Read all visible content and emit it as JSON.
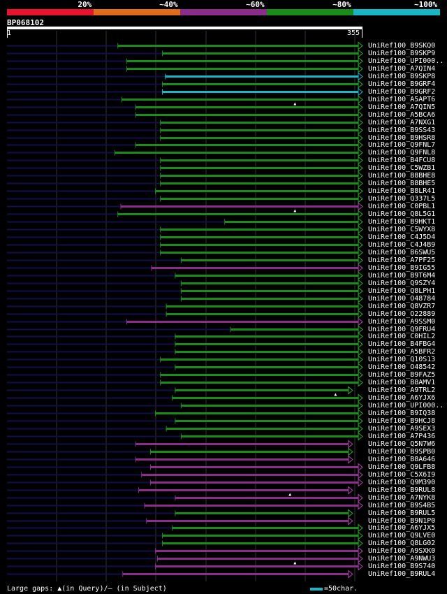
{
  "legend": {
    "segments": [
      {
        "label": "20%",
        "color": "#e8132e"
      },
      {
        "label": "~40%",
        "color": "#e06d1a"
      },
      {
        "label": "~60%",
        "color": "#8b2d8b"
      },
      {
        "label": "~80%",
        "color": "#1a8c1a"
      },
      {
        "label": "~100%",
        "color": "#19b6c6"
      }
    ]
  },
  "query": {
    "id": "BP068102",
    "start": "1",
    "end": "355",
    "length": 355
  },
  "colors": {
    "background": "#000000",
    "unaligned": "#10104a",
    "grid": "#333333"
  },
  "hits": [
    {
      "name": "UniRef100_B9SKQ0",
      "start": 112,
      "end": 355,
      "color": "green"
    },
    {
      "name": "UniRef100_B9SKP9",
      "start": 157,
      "end": 355,
      "color": "green"
    },
    {
      "name": "UniRef100_UPI000..",
      "start": 121,
      "end": 355,
      "color": "green"
    },
    {
      "name": "UniRef100_A7QIN4",
      "start": 121,
      "end": 355,
      "color": "green"
    },
    {
      "name": "UniRef100_B9SKP8",
      "start": 160,
      "end": 355,
      "color": "cyan"
    },
    {
      "name": "UniRef100_B9GRF4",
      "start": 157,
      "end": 355,
      "color": "green"
    },
    {
      "name": "UniRef100_B9GRF2",
      "start": 157,
      "end": 355,
      "color": "cyan"
    },
    {
      "name": "UniRef100_A5APT6",
      "start": 116,
      "end": 355,
      "color": "green",
      "gap": 291
    },
    {
      "name": "UniRef100_A7QIN5",
      "start": 130,
      "end": 355,
      "color": "green"
    },
    {
      "name": "UniRef100_A5BCA6",
      "start": 130,
      "end": 355,
      "color": "green"
    },
    {
      "name": "UniRef100_A7NXG1",
      "start": 155,
      "end": 355,
      "color": "green"
    },
    {
      "name": "UniRef100_B9SS43",
      "start": 155,
      "end": 355,
      "color": "green"
    },
    {
      "name": "UniRef100_B9HSR8",
      "start": 155,
      "end": 355,
      "color": "green"
    },
    {
      "name": "UniRef100_Q9FNL7",
      "start": 130,
      "end": 355,
      "color": "green"
    },
    {
      "name": "UniRef100_Q9FNL8",
      "start": 109,
      "end": 355,
      "color": "green"
    },
    {
      "name": "UniRef100_B4FCU8",
      "start": 155,
      "end": 355,
      "color": "green"
    },
    {
      "name": "UniRef100_C5WZB1",
      "start": 155,
      "end": 355,
      "color": "green"
    },
    {
      "name": "UniRef100_B8BHE8",
      "start": 155,
      "end": 355,
      "color": "green"
    },
    {
      "name": "UniRef100_B8BHE5",
      "start": 155,
      "end": 355,
      "color": "green"
    },
    {
      "name": "UniRef100_B8LR41",
      "start": 150,
      "end": 355,
      "color": "green"
    },
    {
      "name": "UniRef100_Q337L5",
      "start": 155,
      "end": 355,
      "color": "green"
    },
    {
      "name": "UniRef100_C0PBL1",
      "start": 115,
      "end": 355,
      "color": "purple",
      "gap": 291
    },
    {
      "name": "UniRef100_Q8L5G1",
      "start": 112,
      "end": 355,
      "color": "green"
    },
    {
      "name": "UniRef100_B9HKT1",
      "start": 220,
      "end": 355,
      "color": "green"
    },
    {
      "name": "UniRef100_C5WYX8",
      "start": 155,
      "end": 355,
      "color": "green"
    },
    {
      "name": "UniRef100_C4J5D4",
      "start": 155,
      "end": 355,
      "color": "green"
    },
    {
      "name": "UniRef100_C4J4B9",
      "start": 155,
      "end": 355,
      "color": "green"
    },
    {
      "name": "UniRef100_B6SWU5",
      "start": 155,
      "end": 355,
      "color": "green"
    },
    {
      "name": "UniRef100_A7PF25",
      "start": 176,
      "end": 355,
      "color": "green"
    },
    {
      "name": "UniRef100_B9IG55",
      "start": 146,
      "end": 355,
      "color": "purple"
    },
    {
      "name": "UniRef100_B9T6M4",
      "start": 170,
      "end": 355,
      "color": "green"
    },
    {
      "name": "UniRef100_Q9SZY4",
      "start": 176,
      "end": 355,
      "color": "green"
    },
    {
      "name": "UniRef100_Q8LPH1",
      "start": 176,
      "end": 355,
      "color": "green"
    },
    {
      "name": "UniRef100_O48784",
      "start": 176,
      "end": 355,
      "color": "green"
    },
    {
      "name": "UniRef100_Q8VZR7",
      "start": 161,
      "end": 355,
      "color": "green"
    },
    {
      "name": "UniRef100_O22889",
      "start": 161,
      "end": 355,
      "color": "green"
    },
    {
      "name": "UniRef100_A9SSM0",
      "start": 121,
      "end": 355,
      "color": "purple"
    },
    {
      "name": "UniRef100_Q9FRU4",
      "start": 226,
      "end": 355,
      "color": "green"
    },
    {
      "name": "UniRef100_C0HIL2",
      "start": 170,
      "end": 355,
      "color": "green"
    },
    {
      "name": "UniRef100_B4FBG4",
      "start": 170,
      "end": 355,
      "color": "green"
    },
    {
      "name": "UniRef100_A5BFR2",
      "start": 170,
      "end": 355,
      "color": "green"
    },
    {
      "name": "UniRef100_Q10S13",
      "start": 155,
      "end": 355,
      "color": "green"
    },
    {
      "name": "UniRef100_O48542",
      "start": 170,
      "end": 355,
      "color": "green"
    },
    {
      "name": "UniRef100_B9FAZ5",
      "start": 155,
      "end": 355,
      "color": "green"
    },
    {
      "name": "UniRef100_B8AMV1",
      "start": 155,
      "end": 355,
      "color": "green"
    },
    {
      "name": "UniRef100_A9TRL2",
      "start": 170,
      "end": 345,
      "color": "green",
      "gap": 332
    },
    {
      "name": "UniRef100_A6YJX6",
      "start": 167,
      "end": 355,
      "color": "green"
    },
    {
      "name": "UniRef100_UPI000..",
      "start": 176,
      "end": 355,
      "color": "green"
    },
    {
      "name": "UniRef100_B9IQ38",
      "start": 150,
      "end": 355,
      "color": "green"
    },
    {
      "name": "UniRef100_B9HCJ8",
      "start": 170,
      "end": 355,
      "color": "green"
    },
    {
      "name": "UniRef100_A9SEX3",
      "start": 161,
      "end": 355,
      "color": "green"
    },
    {
      "name": "UniRef100_A7P436",
      "start": 176,
      "end": 355,
      "color": "green"
    },
    {
      "name": "UniRef100_Q5N7W6",
      "start": 130,
      "end": 345,
      "color": "purple"
    },
    {
      "name": "UniRef100_B9SPB0",
      "start": 145,
      "end": 345,
      "color": "green"
    },
    {
      "name": "UniRef100_B8A646",
      "start": 130,
      "end": 345,
      "color": "purple"
    },
    {
      "name": "UniRef100_Q9LFB8",
      "start": 145,
      "end": 355,
      "color": "purple"
    },
    {
      "name": "UniRef100_C5X6I9",
      "start": 136,
      "end": 355,
      "color": "purple"
    },
    {
      "name": "UniRef100_Q9M390",
      "start": 145,
      "end": 355,
      "color": "purple"
    },
    {
      "name": "UniRef100_B9RUL8",
      "start": 133,
      "end": 345,
      "color": "purple",
      "gap": 286
    },
    {
      "name": "UniRef100_A7NYK8",
      "start": 170,
      "end": 355,
      "color": "purple"
    },
    {
      "name": "UniRef100_B9S4B5",
      "start": 139,
      "end": 355,
      "color": "purple"
    },
    {
      "name": "UniRef100_B9RUL5",
      "start": 170,
      "end": 345,
      "color": "green"
    },
    {
      "name": "UniRef100_B9N1P0",
      "start": 141,
      "end": 345,
      "color": "purple"
    },
    {
      "name": "UniRef100_A6YJX5",
      "start": 167,
      "end": 355,
      "color": "green"
    },
    {
      "name": "UniRef100_Q9LVE0",
      "start": 157,
      "end": 355,
      "color": "green"
    },
    {
      "name": "UniRef100_Q8LG02",
      "start": 157,
      "end": 355,
      "color": "green"
    },
    {
      "name": "UniRef100_A9SXK0",
      "start": 150,
      "end": 355,
      "color": "purple"
    },
    {
      "name": "UniRef100_A9NWU3",
      "start": 152,
      "end": 355,
      "color": "purple",
      "gap": 291
    },
    {
      "name": "UniRef100_B9S740",
      "start": 150,
      "end": 355,
      "color": "purple"
    },
    {
      "name": "UniRef100_B9RUL4",
      "start": 117,
      "end": 345,
      "color": "purple"
    }
  ],
  "footer": {
    "label": "Large gaps: ▲(in Query)/— (in Subject)",
    "scale_label": "=50char."
  }
}
